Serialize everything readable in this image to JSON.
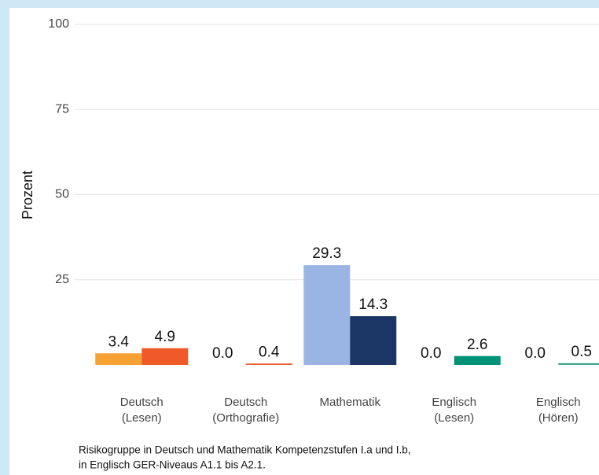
{
  "chart_data": {
    "type": "bar",
    "y_label": "Prozent",
    "categories": [
      [
        "Deutsch",
        "(Lesen)"
      ],
      [
        "Deutsch",
        "(Orthografie)"
      ],
      [
        "Mathematik"
      ],
      [
        "Englisch",
        "(Lesen)"
      ],
      [
        "Englisch",
        "(Hören)"
      ]
    ],
    "series": [
      {
        "colors": [
          "#f7a033",
          "#f05a28",
          "#9ab5e4",
          "#00937a",
          "#3aa68c"
        ],
        "values": [
          3.4,
          0.0,
          29.3,
          0.0,
          0.0
        ],
        "value_labels": [
          "3.4",
          "0.0",
          "29.3",
          "0.0",
          "0.0"
        ]
      },
      {
        "colors": [
          "#f05a28",
          "#f05a28",
          "#1b3664",
          "#00937a",
          "#3aa68c"
        ],
        "values": [
          4.9,
          0.4,
          14.3,
          2.6,
          0.5
        ],
        "value_labels": [
          "4.9",
          "0.4",
          "14.3",
          "2.6",
          "0.5"
        ]
      }
    ],
    "ylim": [
      0,
      100
    ],
    "yticks": [
      25,
      50,
      75,
      100
    ],
    "grid": true,
    "caption": [
      "Risikogruppe in Deutsch und Mathematik Kompetenzstufen I.a und I.b,",
      "in Englisch GER-Niveaus A1.1 bis A2.1."
    ]
  }
}
